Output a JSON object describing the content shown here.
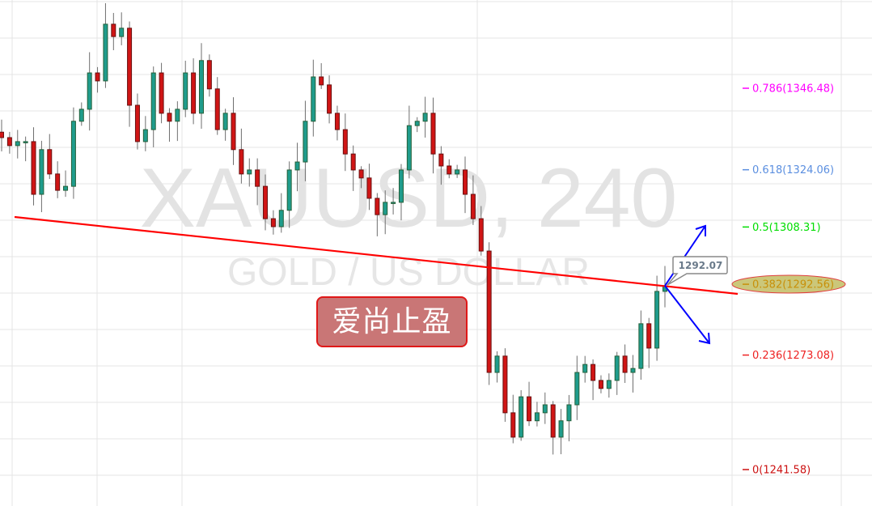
{
  "chart_data": {
    "type": "candlestick",
    "title": "XAUUSD, 240",
    "subtitle": "GOLD / US DOLLAR",
    "ylim": [
      1228,
      1375
    ],
    "grid": true,
    "colors": {
      "up": "#1f9c8c",
      "up_border": "#25603a",
      "down": "#d01515",
      "down_border": "#6a1010",
      "wick": "#6e6e6e",
      "trendline": "#ff0000",
      "arrows": "#0000ff"
    },
    "closes": [
      1332.9,
      1330.7,
      1331.8,
      1331.8,
      1317.3,
      1329.6,
      1322.9,
      1318.4,
      1319.5,
      1337.4,
      1340.7,
      1350.7,
      1348.5,
      1364.1,
      1360.7,
      1363.0,
      1341.8,
      1331.8,
      1335.1,
      1350.7,
      1339.6,
      1337.4,
      1340.7,
      1350.7,
      1339.6,
      1354.1,
      1346.3,
      1335.1,
      1339.6,
      1329.6,
      1322.9,
      1324.0,
      1319.5,
      1310.6,
      1308.4,
      1312.9,
      1324.0,
      1326.2,
      1337.4,
      1349.6,
      1347.4,
      1339.6,
      1335.1,
      1328.4,
      1324.0,
      1321.8,
      1316.2,
      1311.7,
      1315.1,
      1315.1,
      1324.0,
      1336.2,
      1337.4,
      1339.6,
      1328.4,
      1325.1,
      1322.9,
      1324.0,
      1317.3,
      1310.6,
      1301.7,
      1268.3,
      1272.8,
      1257.2,
      1250.5,
      1261.6,
      1255.0,
      1257.2,
      1259.4,
      1250.5,
      1255.0,
      1259.4,
      1268.3,
      1270.5,
      1266.1,
      1263.9,
      1266.1,
      1272.8,
      1268.3,
      1269.4,
      1281.7,
      1275.0,
      1290.6,
      1292.07
    ],
    "last_price_label": "1292.07",
    "fib_levels": [
      {
        "label": "0.786(1346.48)",
        "price": 1346.48,
        "color": "#ff00ff"
      },
      {
        "label": "0.618(1324.06)",
        "price": 1324.06,
        "color": "#5b8fe0"
      },
      {
        "label": "0.5(1308.31)",
        "price": 1308.31,
        "color": "#00dd00"
      },
      {
        "label": "0.382(1292.56)",
        "price": 1292.56,
        "color": "#c8900a",
        "highlighted": true
      },
      {
        "label": "0.236(1273.08)",
        "price": 1273.08,
        "color": "#ee2222"
      },
      {
        "label": "0(1241.58)",
        "price": 1241.58,
        "color": "#cc1111"
      }
    ]
  },
  "stamp_text": "爱尚止盈"
}
